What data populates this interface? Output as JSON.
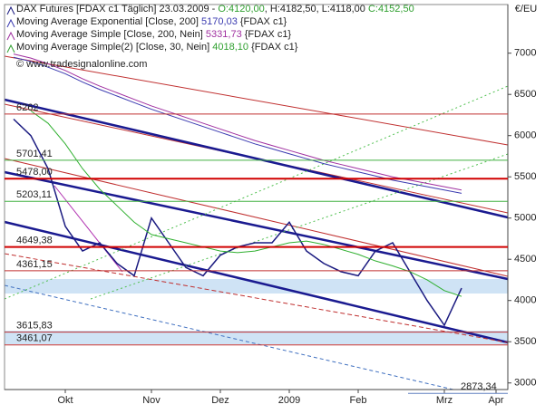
{
  "chart_data": {
    "type": "line",
    "header": {
      "title": "DAX Futures [FDAX c1  Täglich] 23.03.2009 -",
      "open": "O:4120,00",
      "high": "H:4182,50",
      "low": "L:4118,00",
      "close": "C:4152,50"
    },
    "indicators": [
      {
        "label": "Moving Average Exponential [Close, 200]",
        "value_label": "5170,03",
        "tag": "{FDAX c1}"
      },
      {
        "label": "Moving Average Simple [Close, 200, Nein]",
        "value_label": "5331,73",
        "tag": "{FDAX c1}"
      },
      {
        "label": "Moving Average Simple(2) [Close, 30, Nein]",
        "value_label": "4018,10",
        "tag": "{FDAX c1}"
      }
    ],
    "watermark": "© www.tradesignalonline.com",
    "y_label": "€/EU",
    "categories": [
      null,
      null,
      null,
      "Okt",
      null,
      null,
      null,
      null,
      "Nov",
      null,
      null,
      null,
      "Dez",
      null,
      null,
      null,
      "2009",
      null,
      null,
      null,
      "Feb",
      null,
      null,
      null,
      null,
      "Mrz",
      null,
      null,
      "Apr"
    ],
    "series": [
      {
        "name": "DAX Futures",
        "color": "#1a1a80",
        "values": [
          6200,
          6000,
          5600,
          4900,
          4600,
          4700,
          4450,
          4300,
          5000,
          4700,
          4400,
          4300,
          4550,
          4650,
          4700,
          4700,
          4950,
          4600,
          4450,
          4350,
          4300,
          4600,
          4700,
          4350,
          4000,
          3700,
          4150,
          null,
          null
        ]
      },
      {
        "name": "Moving Average Exponential",
        "color": "#3a3ab0",
        "values": [
          6950,
          6900,
          6830,
          6750,
          6650,
          6560,
          6480,
          6400,
          6320,
          6250,
          6180,
          6110,
          6040,
          5970,
          5900,
          5840,
          5780,
          5720,
          5660,
          5610,
          5560,
          5510,
          5460,
          5420,
          5380,
          5340,
          5300,
          null,
          null
        ]
      },
      {
        "name": "Moving Average Simple",
        "color": "#a030a0",
        "values": [
          6990,
          6940,
          6870,
          6790,
          6690,
          6600,
          6520,
          6440,
          6360,
          6290,
          6220,
          6150,
          6080,
          6010,
          5940,
          5880,
          5820,
          5760,
          5700,
          5650,
          5600,
          5550,
          5500,
          5460,
          5420,
          5380,
          5340,
          null,
          null
        ]
      },
      {
        "name": "Moving Average Simple(2)",
        "color": "#30b030",
        "values": [
          null,
          6300,
          6150,
          5900,
          5600,
          5350,
          5150,
          4950,
          4800,
          4750,
          4700,
          4650,
          4600,
          4580,
          4600,
          4650,
          4700,
          4720,
          4680,
          4620,
          4560,
          4480,
          4420,
          4350,
          4250,
          4120,
          4050,
          null,
          null
        ]
      }
    ],
    "levels": [
      {
        "value": 6262,
        "label": "6262",
        "color": "#c03030"
      },
      {
        "value": 5701.41,
        "label": "5701,41",
        "color": "#40b040"
      },
      {
        "value": 5478,
        "label": "5478,00",
        "color": "#d00000"
      },
      {
        "value": 5203.11,
        "label": "5203,11",
        "color": "#40b040"
      },
      {
        "value": 4649.38,
        "label": "4649,38",
        "color": "#d00000"
      },
      {
        "value": 4361.15,
        "label": "4361,15",
        "color": "#c03030"
      },
      {
        "value": 3615.83,
        "label": "3615,83",
        "color": "#c03030"
      },
      {
        "value": 3461.07,
        "label": "3461,07",
        "color": "#c03030"
      },
      {
        "value": 2873.34,
        "label": "2873,34",
        "color": "#6080c0"
      }
    ],
    "ylim": [
      2920,
      7590
    ],
    "yticks": [
      3000,
      3500,
      4000,
      4500,
      5000,
      5500,
      6000,
      6500,
      7000
    ]
  }
}
